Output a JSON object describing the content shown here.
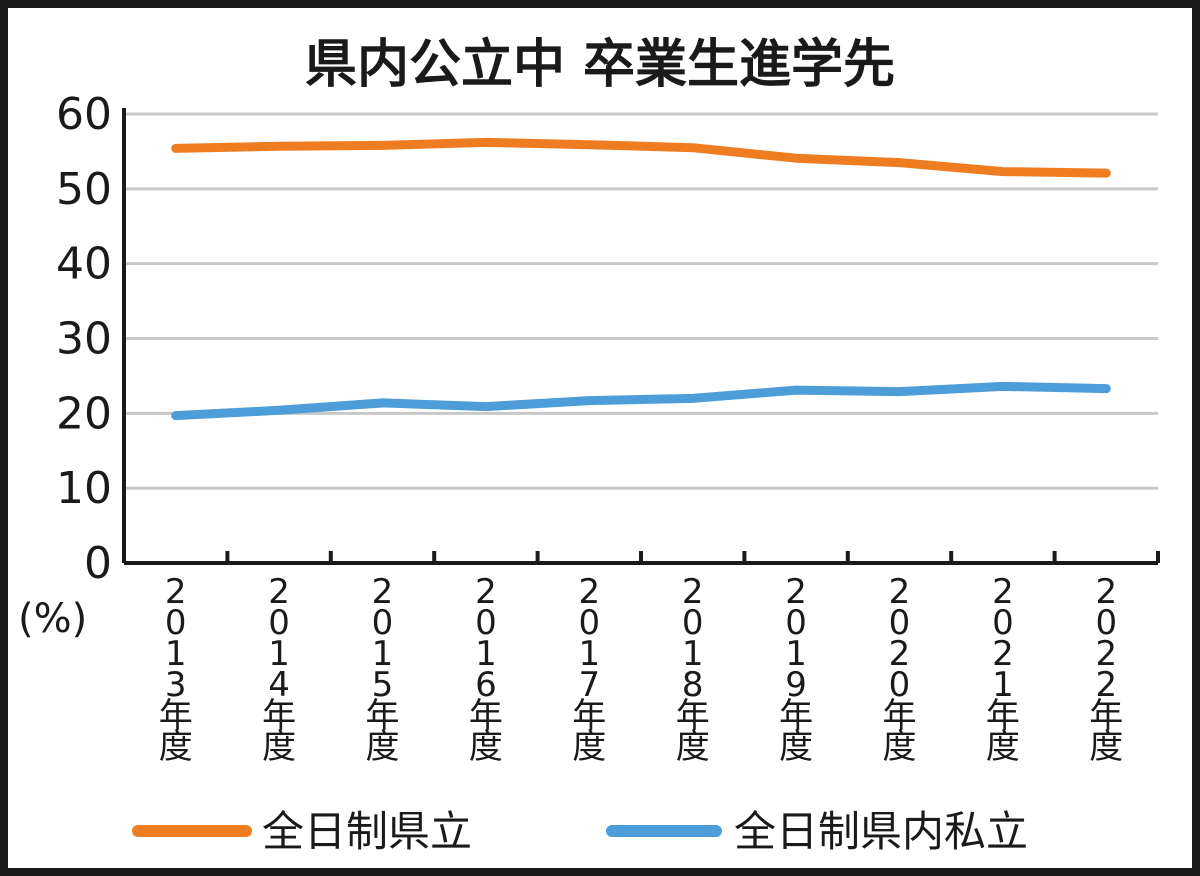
{
  "chart_data": {
    "type": "line",
    "title": "県内公立中 卒業生進学先",
    "y_unit_label": "(%)",
    "ylim": [
      0,
      60
    ],
    "yticks": [
      "0",
      "10",
      "20",
      "30",
      "40",
      "50",
      "60"
    ],
    "ytick_values": [
      0,
      10,
      20,
      30,
      40,
      50,
      60
    ],
    "grid": true,
    "categories": [
      "2013年度",
      "2014年度",
      "2015年度",
      "2016年度",
      "2017年度",
      "2018年度",
      "2019年度",
      "2020年度",
      "2021年度",
      "2022年度"
    ],
    "series": [
      {
        "name": "全日制県立",
        "color": "#ee7d22",
        "values": [
          55.4,
          55.7,
          55.8,
          56.2,
          55.9,
          55.5,
          54.1,
          53.5,
          52.3,
          52.1
        ]
      },
      {
        "name": "全日制県内私立",
        "color": "#4d9ed8",
        "values": [
          19.7,
          20.4,
          21.4,
          20.9,
          21.7,
          22.0,
          23.1,
          22.9,
          23.6,
          23.3
        ]
      }
    ],
    "legend_position": "bottom"
  }
}
